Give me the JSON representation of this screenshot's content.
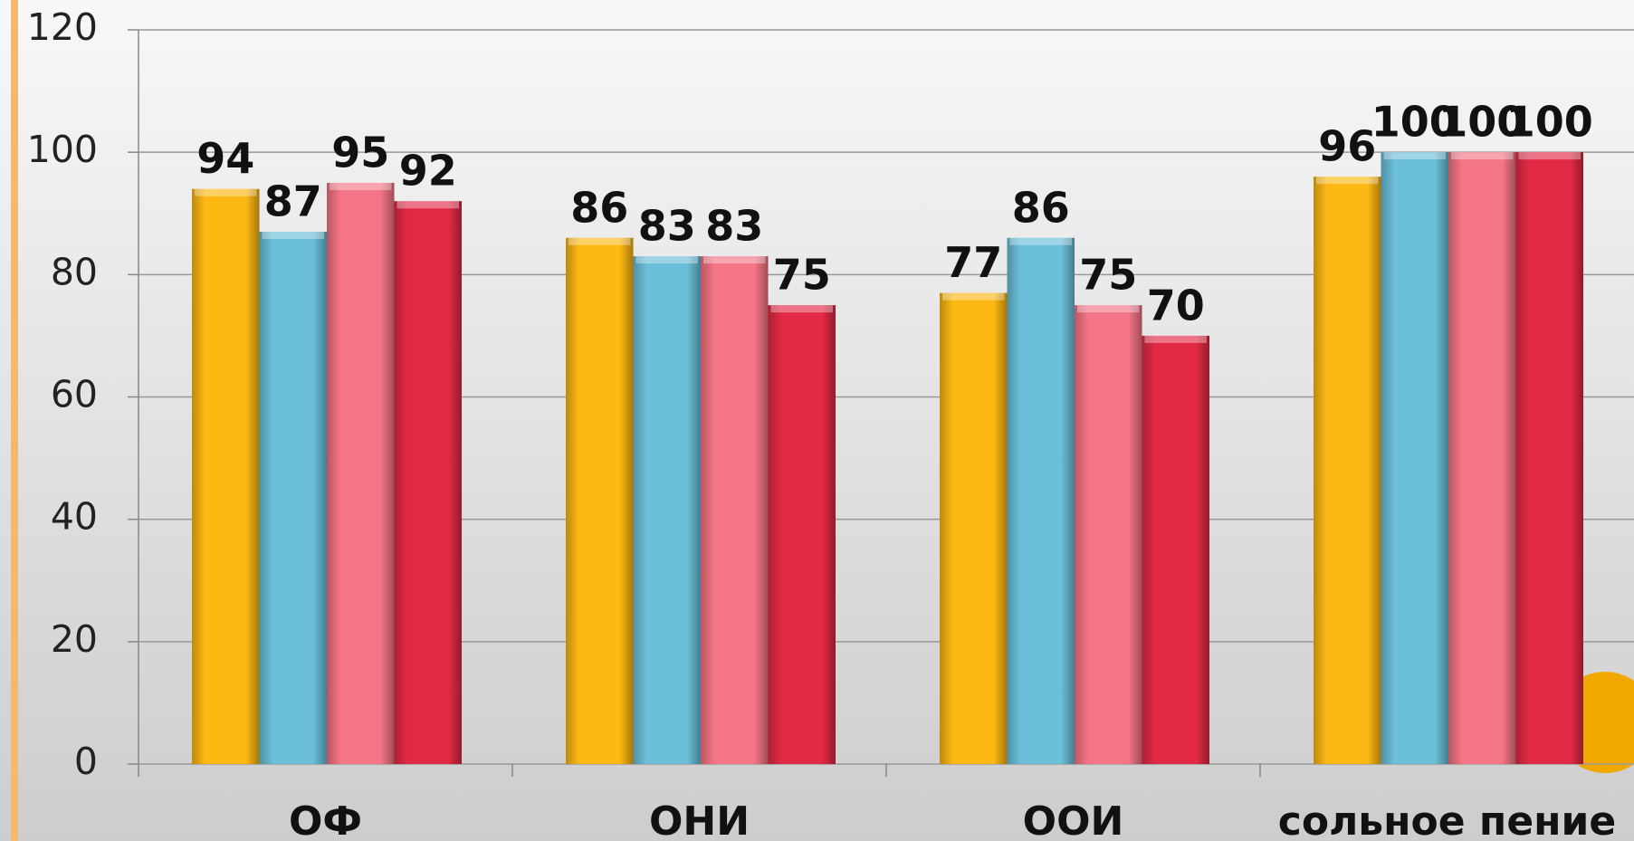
{
  "chart_data": {
    "type": "bar",
    "categories": [
      "ОФ",
      "ОНИ",
      "ООИ",
      "сольное пение"
    ],
    "series": [
      {
        "color": "#FDB813",
        "values": [
          94,
          86,
          77,
          96
        ]
      },
      {
        "color": "#6BBFD9",
        "values": [
          87,
          83,
          86,
          100
        ]
      },
      {
        "color": "#F47585",
        "values": [
          95,
          83,
          75,
          100
        ]
      },
      {
        "color": "#E32A45",
        "values": [
          92,
          75,
          70,
          100
        ]
      }
    ],
    "ylim": [
      0,
      120
    ],
    "yticks": [
      0,
      20,
      40,
      60,
      80,
      100,
      120
    ],
    "grid": true
  }
}
